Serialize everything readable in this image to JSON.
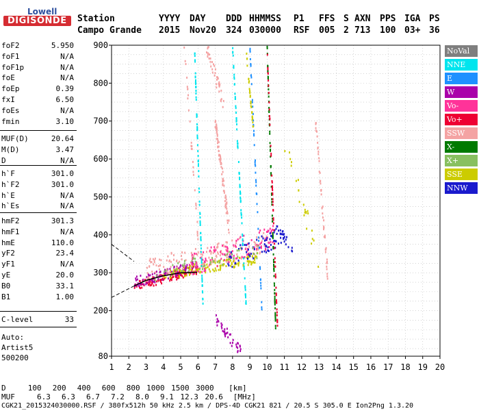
{
  "logo": {
    "top": "Lowell",
    "main": "DIGISONDE"
  },
  "header": {
    "labels": [
      "Station",
      "YYYY",
      "DAY",
      "DDD",
      "HHMMSS",
      "P1",
      "FFS",
      "S",
      "AXN",
      "PPS",
      "IGA",
      "PS"
    ],
    "values": [
      "Campo Grande",
      "2015",
      "Nov20",
      "324",
      "030000",
      "RSF",
      "005",
      "2",
      "713",
      "100",
      "03+",
      "36"
    ]
  },
  "params_group1": [
    {
      "label": "foF2",
      "value": "5.950"
    },
    {
      "label": "foF1",
      "value": "N/A"
    },
    {
      "label": "foF1p",
      "value": "N/A"
    },
    {
      "label": "foE",
      "value": "N/A"
    },
    {
      "label": "foEp",
      "value": "0.39"
    },
    {
      "label": "fxI",
      "value": "6.50"
    },
    {
      "label": "foEs",
      "value": "N/A"
    },
    {
      "label": "fmin",
      "value": "3.10"
    }
  ],
  "params_group2": [
    {
      "label": "MUF(D)",
      "value": "20.64"
    },
    {
      "label": "M(D)",
      "value": "3.47"
    },
    {
      "label": "D",
      "value": "N/A"
    }
  ],
  "params_group3": [
    {
      "label": "h`F",
      "value": "301.0"
    },
    {
      "label": "h`F2",
      "value": "301.0"
    },
    {
      "label": "h`E",
      "value": "N/A"
    },
    {
      "label": "h`Es",
      "value": "N/A"
    }
  ],
  "params_group4": [
    {
      "label": "hmF2",
      "value": "301.3"
    },
    {
      "label": "hmF1",
      "value": "N/A"
    },
    {
      "label": "hmE",
      "value": "110.0"
    },
    {
      "label": "yF2",
      "value": "23.4"
    },
    {
      "label": "yF1",
      "value": "N/A"
    },
    {
      "label": "yE",
      "value": "20.0"
    },
    {
      "label": "B0",
      "value": "33.1"
    },
    {
      "label": "B1",
      "value": "1.00"
    }
  ],
  "clevel": {
    "label": "C-level",
    "value": "33"
  },
  "auto": {
    "line1": "Auto:",
    "line2": "Artist5",
    "line3": "500200"
  },
  "legend": [
    {
      "label": "NoVal",
      "color": "#7f7f7f"
    },
    {
      "label": "NNE",
      "color": "#00e5ee"
    },
    {
      "label": "E",
      "color": "#1e90ff"
    },
    {
      "label": "W",
      "color": "#aa00aa"
    },
    {
      "label": "Vo-",
      "color": "#ff3399"
    },
    {
      "label": "Vo+",
      "color": "#ee0033"
    },
    {
      "label": "SSW",
      "color": "#f4a3a3"
    },
    {
      "label": "X-",
      "color": "#007a00"
    },
    {
      "label": "X+",
      "color": "#88c060"
    },
    {
      "label": "SSE",
      "color": "#cccc00"
    },
    {
      "label": "NNW",
      "color": "#1a1acd"
    }
  ],
  "footer": {
    "d_label": "D",
    "d_values": [
      "100",
      "200",
      "400",
      "600",
      "800",
      "1000",
      "1500",
      "3000",
      "[km]"
    ],
    "muf_label": "MUF",
    "muf_values": [
      "6.3",
      "6.3",
      "6.7",
      "7.2",
      "8.0",
      "9.1",
      "12.3",
      "20.6",
      "[MHz]"
    ],
    "file_line": "CGK21_2015324030000.RSF / 380fx512h 50 kHz 2.5 km / DPS-4D CGK21 821 / 20.5 S 305.0 E Ion2Png 1.3.20"
  },
  "chart_data": {
    "type": "scatter",
    "xlabel": "",
    "ylabel": "",
    "xlim": [
      1,
      20
    ],
    "ylim": [
      80,
      900
    ],
    "x_ticks": [
      1,
      2,
      3,
      4,
      5,
      6,
      7,
      8,
      9,
      10,
      11,
      12,
      13,
      14,
      15,
      16,
      17,
      18,
      19,
      20
    ],
    "y_ticks": [
      80,
      200,
      300,
      400,
      500,
      600,
      700,
      800,
      900
    ],
    "grid": true,
    "legend_position": "right",
    "profile": {
      "x": [
        2.3,
        3.0,
        4.0,
        5.0,
        5.95
      ],
      "y": [
        265,
        280,
        292,
        300,
        301.3
      ]
    },
    "traces": [
      {
        "series": "Vo+",
        "x0": 2.3,
        "x1": 6.0,
        "y0": 265,
        "y1": 310,
        "n": 120,
        "spread": 12
      },
      {
        "series": "W",
        "x0": 2.3,
        "x1": 6.0,
        "y0": 275,
        "y1": 320,
        "n": 100,
        "spread": 14
      },
      {
        "series": "SSE",
        "x0": 4.0,
        "x1": 9.5,
        "y0": 295,
        "y1": 340,
        "n": 140,
        "spread": 14
      },
      {
        "series": "SSW",
        "x0": 3.0,
        "x1": 10.0,
        "y0": 310,
        "y1": 380,
        "n": 160,
        "spread": 30
      },
      {
        "series": "Vo-",
        "x0": 5.5,
        "x1": 10.5,
        "y0": 320,
        "y1": 400,
        "n": 120,
        "spread": 30
      },
      {
        "series": "NNW",
        "x0": 7.5,
        "x1": 11.0,
        "y0": 330,
        "y1": 400,
        "n": 70,
        "spread": 25
      },
      {
        "series": "X+",
        "x0": 3.5,
        "x1": 9.5,
        "y0": 300,
        "y1": 360,
        "n": 50,
        "spread": 20
      },
      {
        "series": "NNE",
        "x0": 5.8,
        "x1": 6.3,
        "y0": 900,
        "y1": 200,
        "n": 80,
        "spread": 8
      },
      {
        "series": "NNE",
        "x0": 8.0,
        "x1": 8.8,
        "y0": 900,
        "y1": 200,
        "n": 80,
        "spread": 8
      },
      {
        "series": "E",
        "x0": 9.0,
        "x1": 9.7,
        "y0": 900,
        "y1": 200,
        "n": 50,
        "spread": 10
      },
      {
        "series": "SSW",
        "x0": 7.0,
        "x1": 7.8,
        "y0": 700,
        "y1": 420,
        "n": 80,
        "spread": 20
      },
      {
        "series": "SSW",
        "x0": 6.5,
        "x1": 7.5,
        "y0": 900,
        "y1": 740,
        "n": 40,
        "spread": 20
      },
      {
        "series": "X-",
        "x0": 10.0,
        "x1": 10.5,
        "y0": 900,
        "y1": 150,
        "n": 90,
        "spread": 6
      },
      {
        "series": "Vo+",
        "x0": 10.0,
        "x1": 10.6,
        "y0": 890,
        "y1": 160,
        "n": 60,
        "spread": 6
      },
      {
        "series": "SSE",
        "x0": 8.8,
        "x1": 9.2,
        "y0": 880,
        "y1": 680,
        "n": 30,
        "spread": 8
      },
      {
        "series": "W",
        "x0": 7.0,
        "x1": 8.5,
        "y0": 180,
        "y1": 90,
        "n": 40,
        "spread": 15
      },
      {
        "series": "SSW",
        "x0": 12.8,
        "x1": 13.5,
        "y0": 700,
        "y1": 300,
        "n": 50,
        "spread": 20
      },
      {
        "series": "SSW",
        "x0": 5.2,
        "x1": 6.0,
        "y0": 900,
        "y1": 400,
        "n": 30,
        "spread": 15
      },
      {
        "series": "SSE",
        "x0": 11.0,
        "x1": 13.0,
        "y0": 650,
        "y1": 330,
        "n": 25,
        "spread": 30
      },
      {
        "series": "NNW",
        "x0": 10.5,
        "x1": 11.5,
        "y0": 420,
        "y1": 370,
        "n": 20,
        "spread": 15
      }
    ]
  }
}
